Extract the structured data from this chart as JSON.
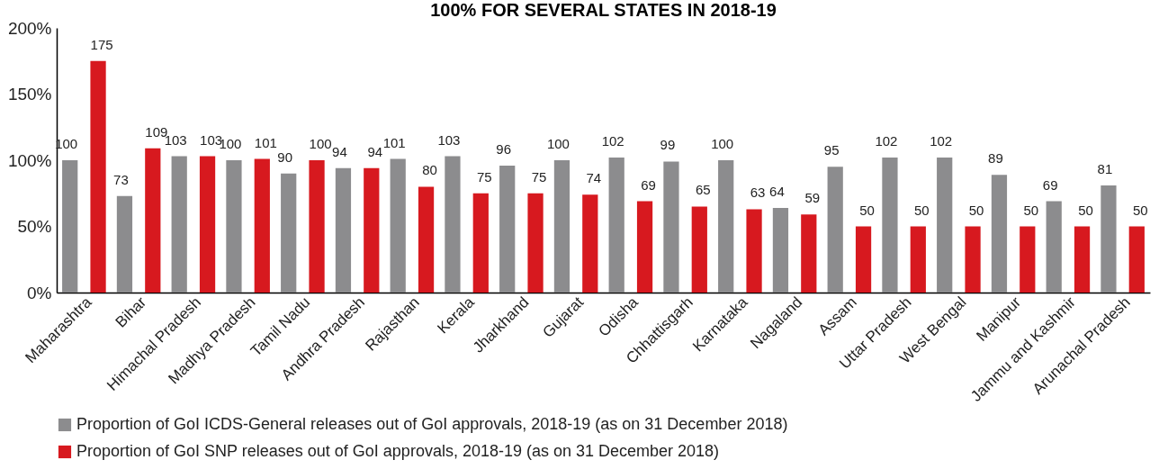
{
  "chart_data": {
    "type": "bar",
    "title": "100% FOR SEVERAL STATES IN 2018-19",
    "categories": [
      "Maharashtra",
      "Bihar",
      "Himachal Pradesh",
      "Madhya Pradesh",
      "Tamil Nadu",
      "Andhra Pradesh",
      "Rajasthan",
      "Kerala",
      "Jharkhand",
      "Gujarat",
      "Odisha",
      "Chhattisgarh",
      "Karnataka",
      "Nagaland",
      "Assam",
      "Uttar Pradesh",
      "West Bengal",
      "Manipur",
      "Jammu and Kashmir",
      "Arunachal Pradesh"
    ],
    "series": [
      {
        "name": "Proportion of GoI ICDS-General releases out of GoI approvals, 2018-19 (as on 31 December 2018)",
        "color": "#8c8c8e",
        "values": [
          100,
          73,
          103,
          100,
          90,
          94,
          101,
          103,
          96,
          100,
          102,
          99,
          100,
          64,
          95,
          102,
          102,
          89,
          69,
          81
        ]
      },
      {
        "name": "Proportion of GoI SNP releases out of GoI approvals, 2018-19 (as on 31 December 2018)",
        "color": "#d7191f",
        "values": [
          175,
          109,
          103,
          101,
          100,
          94,
          80,
          75,
          75,
          74,
          69,
          65,
          63,
          59,
          50,
          50,
          50,
          50,
          50,
          50
        ]
      }
    ],
    "ylim": [
      0,
      200
    ],
    "yticks": [
      {
        "value": 0,
        "label": "0%"
      },
      {
        "value": 50,
        "label": "50%"
      },
      {
        "value": 100,
        "label": "100%"
      },
      {
        "value": 150,
        "label": "150%"
      },
      {
        "value": 200,
        "label": "200%"
      }
    ],
    "grid": false,
    "legend": "bottom",
    "data_labels": true
  }
}
